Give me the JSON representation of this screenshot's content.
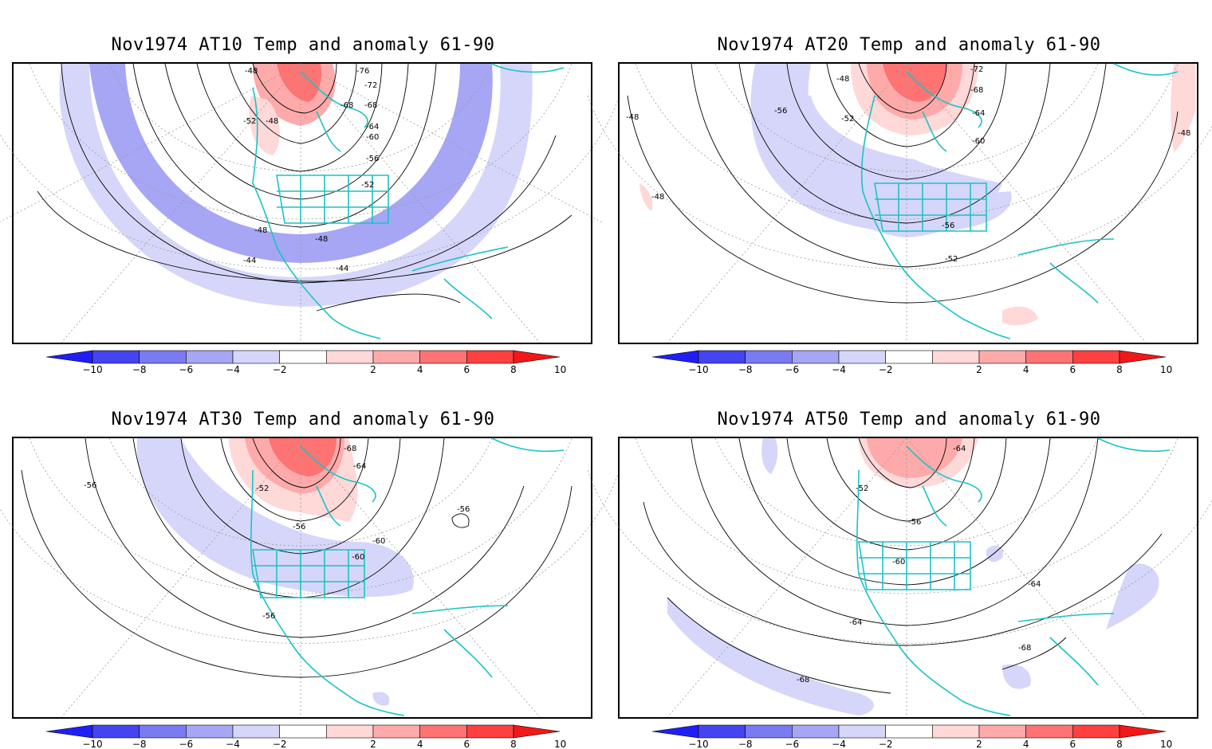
{
  "colorbar": {
    "ticks": [
      "−10",
      "−8",
      "−6",
      "−4",
      "−2",
      "2",
      "4",
      "6",
      "8",
      "10"
    ],
    "colors": [
      "#1f1ff5",
      "#4444f0",
      "#7a7af2",
      "#a6a6f5",
      "#d6d6fa",
      "#ffffff",
      "#ffd8d8",
      "#ffaaaa",
      "#ff7373",
      "#ff4040",
      "#f01818"
    ]
  },
  "panels": [
    {
      "title": "Nov1974 AT10 Temp and anomaly 61-90",
      "contour_labels": [
        "-48",
        "-76",
        "-72",
        "-68",
        "-68",
        "-52",
        "-48",
        "-64",
        "-60",
        "-56",
        "-52",
        "-48",
        "-48",
        "-44",
        "-44"
      ]
    },
    {
      "title": "Nov1974 AT20 Temp and anomaly 61-90",
      "contour_labels": [
        "-48",
        "-72",
        "-68",
        "-64",
        "-56",
        "-52",
        "-60",
        "-48",
        "-48",
        "-48",
        "-56",
        "-52"
      ]
    },
    {
      "title": "Nov1974 AT30 Temp and anomaly 61-90",
      "contour_labels": [
        "-68",
        "-64",
        "-56",
        "-52",
        "-56",
        "-56",
        "-60",
        "-60",
        "-56"
      ]
    },
    {
      "title": "Nov1974 AT50 Temp and anomaly 61-90",
      "contour_labels": [
        "-64",
        "-52",
        "-56",
        "-60",
        "-64",
        "-64",
        "-68",
        "-68"
      ]
    }
  ]
}
